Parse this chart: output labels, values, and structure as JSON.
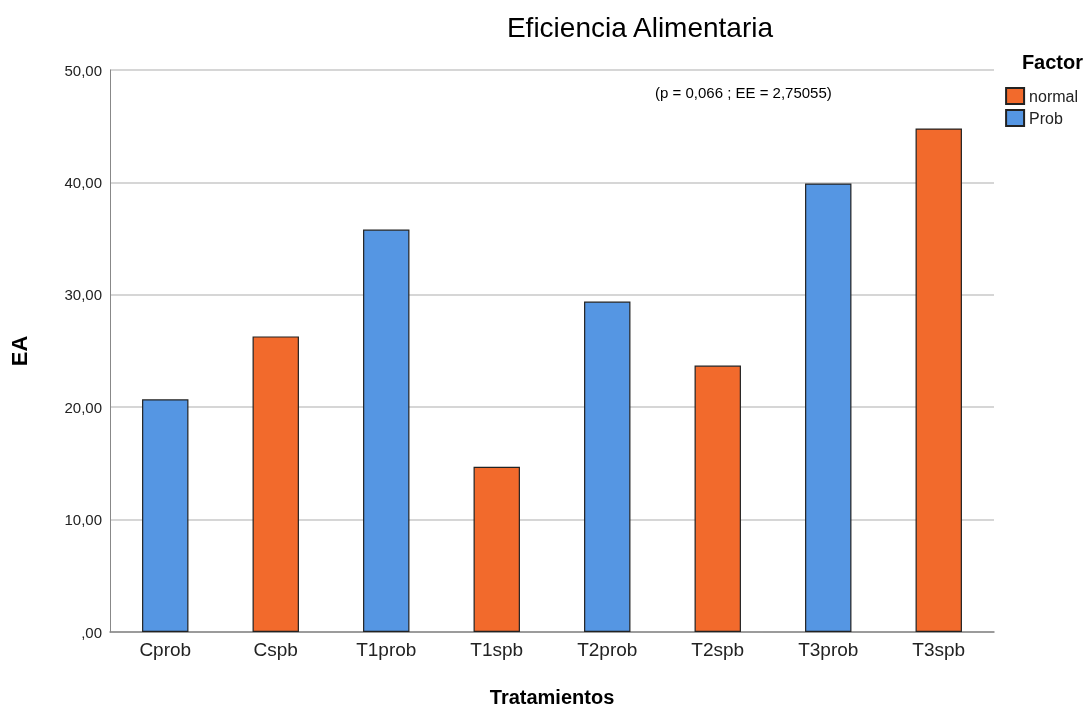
{
  "chart_data": {
    "type": "bar",
    "title": "Eficiencia Alimentaria",
    "xlabel": "Tratamientos",
    "ylabel": "EA",
    "legend_title": "Factor",
    "categories": [
      "Cprob",
      "Cspb",
      "T1prob",
      "T1spb",
      "T2prob",
      "T2spb",
      "T3prob",
      "T3spb"
    ],
    "series": [
      {
        "name": "normal",
        "color": "#f26a2c",
        "values": [
          null,
          26.3,
          null,
          14.7,
          null,
          23.7,
          null,
          44.8
        ]
      },
      {
        "name": "Prob",
        "color": "#5596e3",
        "values": [
          20.7,
          null,
          35.8,
          null,
          29.4,
          null,
          39.9,
          null
        ]
      }
    ],
    "ylim": [
      0,
      50
    ],
    "yticks": [
      {
        "value": 0,
        "label": ",00"
      },
      {
        "value": 10,
        "label": "10,00"
      },
      {
        "value": 20,
        "label": "20,00"
      },
      {
        "value": 30,
        "label": "30,00"
      },
      {
        "value": 40,
        "label": "40,00"
      },
      {
        "value": 50,
        "label": "50,00"
      }
    ],
    "annotations": [
      "(p = 0,066 ; EE = 2,75055)"
    ],
    "grid": "y",
    "legend": "top right"
  }
}
